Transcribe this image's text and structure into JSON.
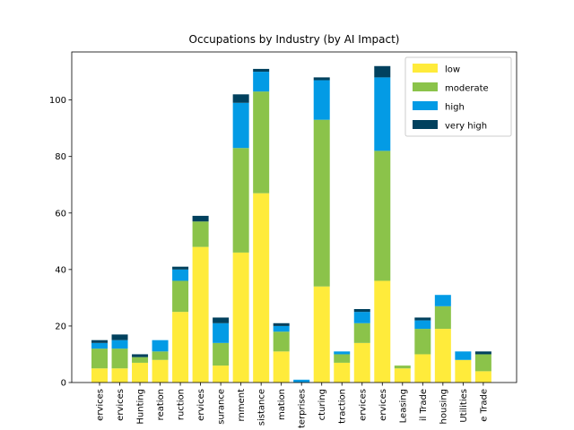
{
  "chart_data": {
    "type": "bar",
    "stacked": true,
    "title": "Occupations by Industry (by AI Impact)",
    "xlabel": "",
    "ylabel": "",
    "ylim": [
      0,
      117
    ],
    "yticks": [
      0,
      20,
      40,
      60,
      80,
      100
    ],
    "categories": [
      "ervices",
      "ervices",
      "Hunting",
      "reation",
      "ruction",
      "ervices",
      "surance",
      "rnment",
      "sistance",
      "mation",
      "terprises",
      "cturing",
      "traction",
      "ervices",
      "ervices",
      "Leasing",
      "il Trade",
      "housing",
      "Utilities",
      "e Trade"
    ],
    "series": [
      {
        "name": "low",
        "color": "#ffeb3b",
        "values": [
          5,
          5,
          7,
          8,
          25,
          48,
          6,
          46,
          67,
          11,
          0,
          34,
          7,
          14,
          36,
          5,
          10,
          19,
          8,
          4
        ]
      },
      {
        "name": "moderate",
        "color": "#8bc34a",
        "values": [
          7,
          7,
          2,
          3,
          11,
          9,
          8,
          37,
          36,
          7,
          0,
          59,
          3,
          7,
          46,
          1,
          9,
          8,
          0,
          6
        ]
      },
      {
        "name": "high",
        "color": "#039be5",
        "values": [
          2,
          3,
          0,
          4,
          4,
          0,
          7,
          16,
          7,
          2,
          1,
          14,
          1,
          4,
          26,
          0,
          3,
          4,
          3,
          0
        ]
      },
      {
        "name": "very high",
        "color": "#01415e",
        "values": [
          1,
          2,
          1,
          0,
          1,
          2,
          2,
          3,
          1,
          1,
          0,
          1,
          0,
          1,
          4,
          0,
          1,
          0,
          0,
          1
        ]
      }
    ],
    "grid": false,
    "legend": "top-right"
  }
}
